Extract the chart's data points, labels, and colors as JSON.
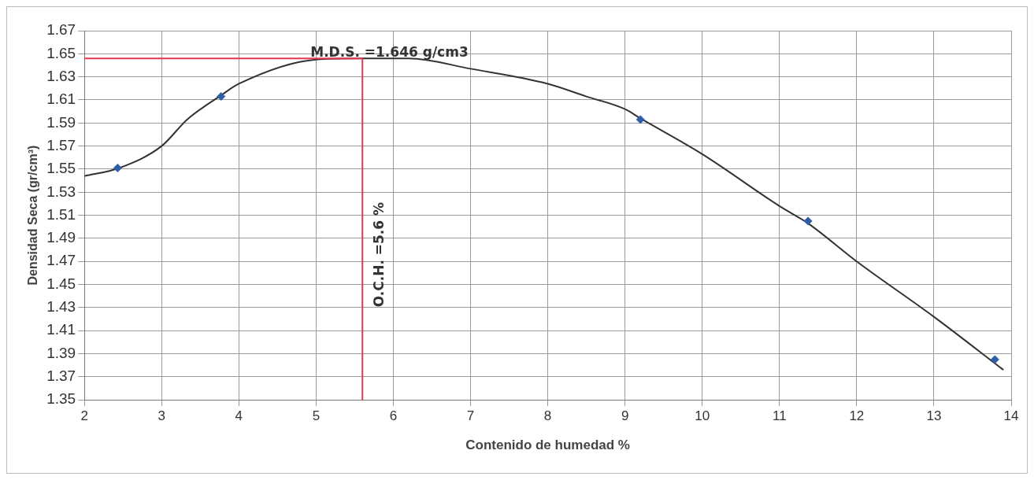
{
  "chart_data": {
    "type": "scatter",
    "xlabel": "Contenido de humedad %",
    "ylabel": "Densidad Seca (gr/cm³)",
    "xlim": [
      2,
      14
    ],
    "xticks": [
      2,
      3,
      4,
      5,
      6,
      7,
      8,
      9,
      10,
      11,
      12,
      13,
      14
    ],
    "ylim": [
      1.35,
      1.67
    ],
    "yticks": [
      1.35,
      1.37,
      1.39,
      1.41,
      1.43,
      1.45,
      1.47,
      1.49,
      1.51,
      1.53,
      1.55,
      1.57,
      1.59,
      1.61,
      1.63,
      1.65,
      1.67
    ],
    "grid": true,
    "legend": false,
    "series": [
      {
        "type": "line",
        "color": "#333333",
        "marker": "none",
        "x": [
          2.0,
          2.45,
          3.0,
          3.33,
          3.77,
          4.0,
          5.0,
          5.6,
          6.2,
          7.0,
          8.0,
          8.5,
          9.0,
          9.2,
          10.0,
          11.0,
          11.37,
          12.0,
          13.0,
          13.9
        ],
        "values": [
          1.544,
          1.551,
          1.57,
          1.593,
          1.614,
          1.624,
          1.645,
          1.646,
          1.646,
          1.637,
          1.624,
          1.613,
          1.602,
          1.594,
          1.563,
          1.518,
          1.503,
          1.47,
          1.422,
          1.376
        ]
      },
      {
        "type": "scatter",
        "color": "#2e5fa8",
        "marker": "diamond",
        "x": [
          2.43,
          3.77,
          9.2,
          11.37,
          13.79
        ],
        "values": [
          1.551,
          1.613,
          1.593,
          1.505,
          1.385
        ]
      }
    ],
    "ref_lines": [
      {
        "axis": "y",
        "value": 1.646,
        "label": "M.D.S. =1.646 g/cm3",
        "color": "#e8384f"
      },
      {
        "axis": "x",
        "value": 5.6,
        "label": "O.C.H. =5.6 %",
        "color": "#e8384f"
      }
    ]
  }
}
